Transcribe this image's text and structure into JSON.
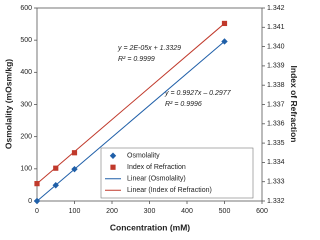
{
  "chart_data": {
    "type": "scatter",
    "x_label": "Concentration (mM)",
    "y_label": "Osmolality (mOsm/kg)",
    "y2_label": "Index of Refraction",
    "xlim": [
      0,
      600
    ],
    "xticks": [
      0,
      100,
      200,
      300,
      400,
      500,
      600
    ],
    "ylim": [
      0,
      600
    ],
    "yticks": [
      0,
      100,
      200,
      300,
      400,
      500,
      600
    ],
    "y2lim": [
      1.332,
      1.342
    ],
    "y2ticks": [
      1.332,
      1.333,
      1.334,
      1.335,
      1.336,
      1.337,
      1.338,
      1.339,
      {
        "value": 1.34,
        "label": "1.340"
      },
      1.341,
      1.342
    ],
    "series": [
      {
        "name": "Osmolality",
        "color": "#1f5fa8",
        "marker": "diamond",
        "x": [
          0,
          50,
          100,
          500
        ],
        "values": [
          0,
          49,
          99,
          496
        ]
      },
      {
        "name": "Index of Refraction",
        "color": "#c0392b",
        "marker": "square",
        "axis": "y2",
        "x": [
          0,
          50,
          100,
          500
        ],
        "values": [
          1.3329,
          1.3337,
          1.3345,
          1.3412
        ]
      },
      {
        "name": "Linear (Osmolality)",
        "color": "#1f5fa8",
        "marker": "line",
        "x": [
          0,
          500
        ],
        "values": [
          -0.3,
          496.1
        ]
      },
      {
        "name": "Linear (Index of Refraction)",
        "color": "#c0392b",
        "marker": "line",
        "axis": "y2",
        "x": [
          0,
          500
        ],
        "values": [
          1.3329,
          1.3412
        ]
      }
    ],
    "annotations": [
      "y = 2E-05x + 1.3329",
      "R² = 0.9999",
      "y = 0.9927x – 0.2977",
      "R² = 0.9996"
    ],
    "legend": "lower-right"
  }
}
